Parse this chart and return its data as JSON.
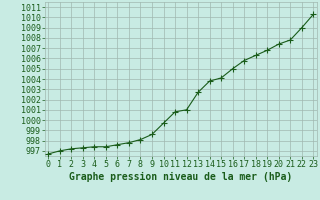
{
  "x": [
    0,
    1,
    2,
    3,
    4,
    5,
    6,
    7,
    8,
    9,
    10,
    11,
    12,
    13,
    14,
    15,
    16,
    17,
    18,
    19,
    20,
    21,
    22,
    23
  ],
  "y": [
    996.7,
    997.0,
    997.2,
    997.3,
    997.4,
    997.4,
    997.6,
    997.8,
    998.1,
    998.6,
    999.7,
    1000.8,
    1001.0,
    1002.7,
    1003.8,
    1004.1,
    1005.0,
    1005.8,
    1006.3,
    1006.8,
    1007.4,
    1007.8,
    1009.0,
    1010.3
  ],
  "line_color": "#1a5c1a",
  "marker_color": "#1a5c1a",
  "bg_color": "#c8ebe3",
  "grid_color": "#a0b8b0",
  "xlabel": "Graphe pression niveau de la mer (hPa)",
  "ylim": [
    996.5,
    1011.5
  ],
  "xlim": [
    -0.3,
    23.3
  ],
  "yticks": [
    997,
    998,
    999,
    1000,
    1001,
    1002,
    1003,
    1004,
    1005,
    1006,
    1007,
    1008,
    1009,
    1010,
    1011
  ],
  "xticks": [
    0,
    1,
    2,
    3,
    4,
    5,
    6,
    7,
    8,
    9,
    10,
    11,
    12,
    13,
    14,
    15,
    16,
    17,
    18,
    19,
    20,
    21,
    22,
    23
  ],
  "font_color": "#1a5c1a",
  "tick_fontsize": 6,
  "xlabel_fontsize": 7,
  "linewidth": 0.8,
  "markersize": 4,
  "markeredgewidth": 0.8
}
